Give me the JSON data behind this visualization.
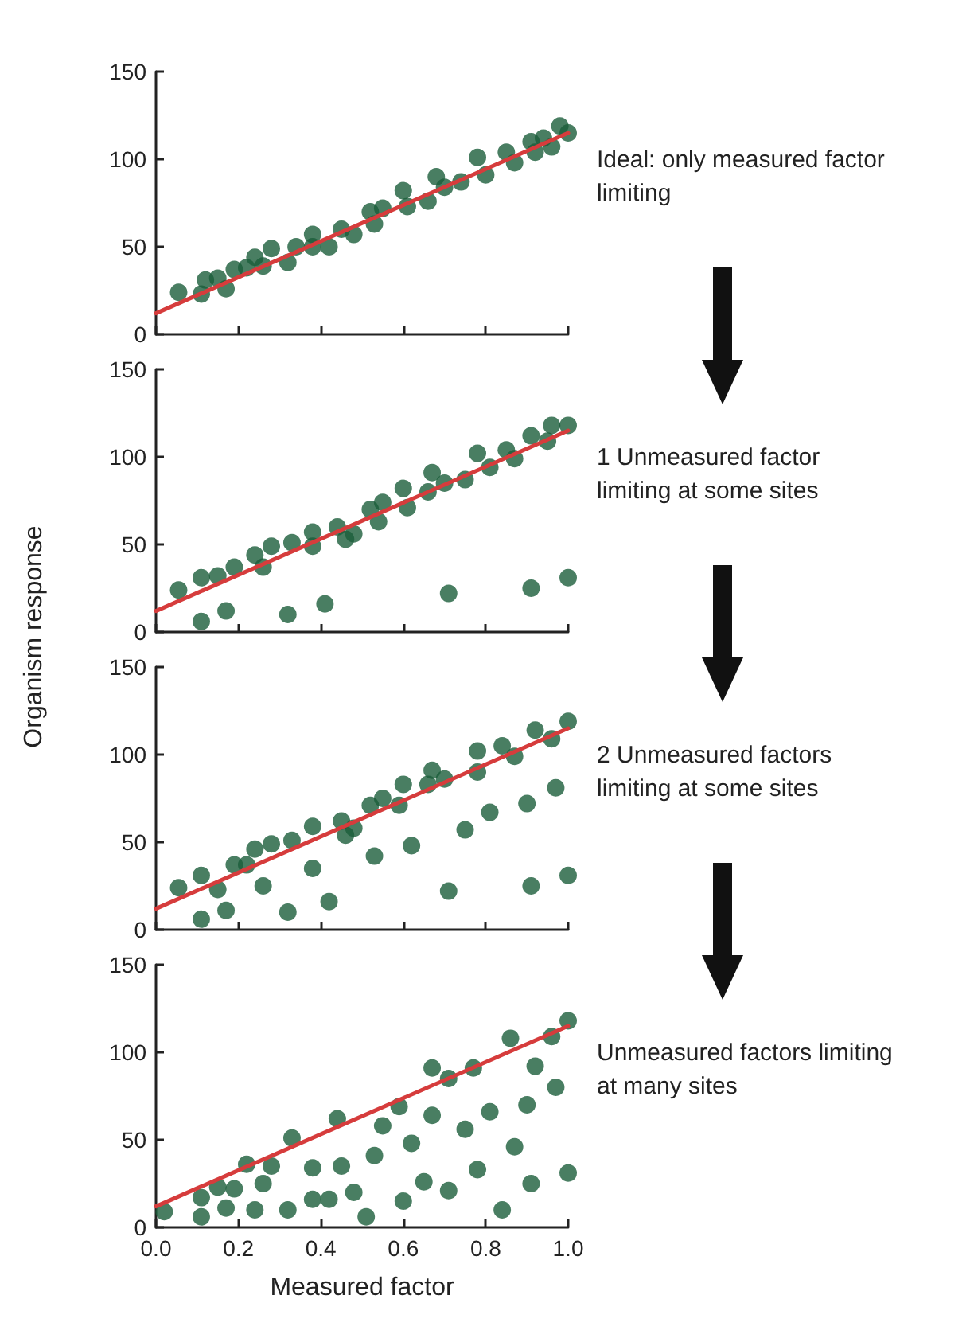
{
  "chart_data": [
    {
      "type": "scatter",
      "xlim": [
        0,
        1
      ],
      "xticks": [
        0,
        0.2,
        0.4,
        0.6,
        0.8,
        1
      ],
      "ylim": [
        0,
        150
      ],
      "yticks": [
        0,
        50,
        100,
        150
      ],
      "tick_labels": "y",
      "marker": "circle",
      "annotations": [
        "Ideal: only measured factor limiting"
      ],
      "series": [
        {
          "type": "line",
          "marker": "none",
          "color": "#d63c3c",
          "x": [
            0,
            1
          ],
          "values": [
            12,
            115
          ]
        },
        {
          "color": "#1b5e3b",
          "x": [
            0.055,
            0.11,
            0.12,
            0.15,
            0.17,
            0.19,
            0.22,
            0.24,
            0.26,
            0.28,
            0.32,
            0.34,
            0.38,
            0.38,
            0.42,
            0.45,
            0.48,
            0.52,
            0.53,
            0.55,
            0.6,
            0.61,
            0.66,
            0.68,
            0.7,
            0.74,
            0.78,
            0.8,
            0.85,
            0.87,
            0.91,
            0.92,
            0.94,
            0.96,
            0.98,
            1.0
          ],
          "values": [
            24,
            23,
            31,
            32,
            26,
            37,
            38,
            44,
            39,
            49,
            41,
            50,
            57,
            50,
            50,
            60,
            57,
            70,
            63,
            72,
            82,
            73,
            76,
            90,
            84,
            87,
            101,
            91,
            104,
            98,
            110,
            104,
            112,
            107,
            119,
            115
          ]
        }
      ]
    },
    {
      "type": "scatter",
      "xlim": [
        0,
        1
      ],
      "xticks": [
        0,
        0.2,
        0.4,
        0.6,
        0.8,
        1
      ],
      "ylim": [
        0,
        150
      ],
      "yticks": [
        0,
        50,
        100,
        150
      ],
      "tick_labels": "y",
      "marker": "circle",
      "ylabel": "Organism response",
      "annotations": [
        "1 Unmeasured factor limiting at some sites"
      ],
      "series": [
        {
          "type": "line",
          "marker": "none",
          "color": "#d63c3c",
          "x": [
            0,
            1
          ],
          "values": [
            12,
            115
          ]
        },
        {
          "color": "#1b5e3b",
          "x": [
            0.055,
            0.11,
            0.15,
            0.19,
            0.24,
            0.26,
            0.28,
            0.33,
            0.38,
            0.38,
            0.44,
            0.46,
            0.48,
            0.52,
            0.54,
            0.55,
            0.6,
            0.61,
            0.66,
            0.67,
            0.7,
            0.75,
            0.78,
            0.81,
            0.85,
            0.87,
            0.91,
            0.95,
            0.96,
            1.0,
            0.11,
            0.17,
            0.32,
            0.41,
            0.71,
            0.91,
            1.0
          ],
          "values": [
            24,
            31,
            32,
            37,
            44,
            37,
            49,
            51,
            57,
            49,
            60,
            53,
            56,
            70,
            63,
            74,
            82,
            71,
            80,
            91,
            85,
            87,
            102,
            94,
            104,
            99,
            112,
            109,
            118,
            118,
            6,
            12,
            10,
            16,
            22,
            25,
            31
          ]
        }
      ]
    },
    {
      "type": "scatter",
      "xlim": [
        0,
        1
      ],
      "xticks": [
        0,
        0.2,
        0.4,
        0.6,
        0.8,
        1
      ],
      "ylim": [
        0,
        150
      ],
      "yticks": [
        0,
        50,
        100,
        150
      ],
      "tick_labels": "y",
      "marker": "circle",
      "annotations": [
        "2 Unmeasured factors limiting at some sites"
      ],
      "series": [
        {
          "type": "line",
          "marker": "none",
          "color": "#d63c3c",
          "x": [
            0,
            1
          ],
          "values": [
            12,
            115
          ]
        },
        {
          "color": "#1b5e3b",
          "x": [
            0.055,
            0.11,
            0.15,
            0.19,
            0.22,
            0.24,
            0.28,
            0.33,
            0.38,
            0.45,
            0.46,
            0.48,
            0.52,
            0.55,
            0.6,
            0.59,
            0.66,
            0.67,
            0.7,
            0.78,
            0.78,
            0.84,
            0.87,
            0.92,
            0.96,
            1.0,
            0.11,
            0.17,
            0.26,
            0.32,
            0.38,
            0.42,
            0.53,
            0.62,
            0.71,
            0.75,
            0.81,
            0.9,
            0.91,
            0.97,
            1.0
          ],
          "values": [
            24,
            31,
            23,
            37,
            37,
            46,
            49,
            51,
            59,
            62,
            54,
            58,
            71,
            75,
            83,
            71,
            83,
            91,
            86,
            102,
            90,
            105,
            99,
            114,
            109,
            119,
            6,
            11,
            25,
            10,
            35,
            16,
            42,
            48,
            22,
            57,
            67,
            72,
            25,
            81,
            31
          ]
        }
      ]
    },
    {
      "type": "scatter",
      "xlim": [
        0,
        1
      ],
      "xticks": [
        {
          "value": 0,
          "label": "0.0"
        },
        0.2,
        0.4,
        0.6,
        0.8,
        {
          "value": 1,
          "label": "1.0"
        }
      ],
      "ylim": [
        0,
        150
      ],
      "yticks": [
        0,
        50,
        100,
        150
      ],
      "marker": "circle",
      "xlabel": "Measured factor",
      "annotations": [
        "Unmeasured factors limiting at many sites"
      ],
      "series": [
        {
          "type": "line",
          "marker": "none",
          "color": "#d63c3c",
          "x": [
            0,
            1
          ],
          "values": [
            12,
            115
          ]
        },
        {
          "color": "#1b5e3b",
          "x": [
            0.02,
            0.11,
            0.11,
            0.15,
            0.17,
            0.19,
            0.22,
            0.24,
            0.26,
            0.28,
            0.32,
            0.33,
            0.38,
            0.38,
            0.42,
            0.45,
            0.44,
            0.48,
            0.51,
            0.53,
            0.55,
            0.59,
            0.6,
            0.62,
            0.65,
            0.67,
            0.67,
            0.71,
            0.71,
            0.75,
            0.77,
            0.78,
            0.81,
            0.84,
            0.86,
            0.87,
            0.9,
            0.91,
            0.92,
            0.96,
            0.97,
            1.0,
            1.0
          ],
          "values": [
            9,
            17,
            6,
            23,
            11,
            22,
            36,
            10,
            25,
            35,
            10,
            51,
            34,
            16,
            16,
            35,
            62,
            20,
            6,
            41,
            58,
            69,
            15,
            48,
            26,
            64,
            91,
            85,
            21,
            56,
            91,
            33,
            66,
            10,
            108,
            46,
            70,
            25,
            92,
            109,
            80,
            118,
            31
          ]
        }
      ]
    }
  ]
}
